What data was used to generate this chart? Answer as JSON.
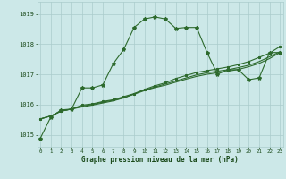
{
  "background_color": "#cce8e8",
  "grid_color": "#aacccc",
  "line_color": "#2d6a2d",
  "text_color": "#1a4a1a",
  "ylabel_values": [
    1015,
    1016,
    1017,
    1018,
    1019
  ],
  "xlabel_values": [
    0,
    1,
    2,
    3,
    4,
    5,
    6,
    7,
    8,
    9,
    10,
    11,
    12,
    13,
    14,
    15,
    16,
    17,
    18,
    19,
    20,
    21,
    22,
    23
  ],
  "xlabel": "Graphe pression niveau de la mer (hPa)",
  "series1": {
    "x": [
      0,
      1,
      2,
      3,
      4,
      5,
      6,
      7,
      8,
      9,
      10,
      11,
      12,
      13,
      14,
      15,
      16,
      17,
      18,
      19,
      20,
      21,
      22,
      23
    ],
    "y": [
      1014.88,
      1015.58,
      1015.82,
      1015.85,
      1016.55,
      1016.55,
      1016.65,
      1017.35,
      1017.82,
      1018.55,
      1018.83,
      1018.9,
      1018.83,
      1018.52,
      1018.55,
      1018.55,
      1017.72,
      1017.0,
      1017.15,
      1017.15,
      1016.82,
      1016.88,
      1017.72,
      1017.72
    ]
  },
  "series2": {
    "x": [
      0,
      1,
      2,
      3,
      4,
      5,
      6,
      7,
      8,
      9,
      10,
      11,
      12,
      13,
      14,
      15,
      16,
      17,
      18,
      19,
      20,
      21,
      22,
      23
    ],
    "y": [
      1015.52,
      1015.62,
      1015.78,
      1015.85,
      1015.92,
      1015.98,
      1016.05,
      1016.12,
      1016.22,
      1016.35,
      1016.48,
      1016.58,
      1016.68,
      1016.78,
      1016.88,
      1016.98,
      1017.05,
      1017.1,
      1017.15,
      1017.22,
      1017.3,
      1017.42,
      1017.58,
      1017.75
    ]
  },
  "series3": {
    "x": [
      0,
      1,
      2,
      3,
      4,
      5,
      6,
      7,
      8,
      9,
      10,
      11,
      12,
      13,
      14,
      15,
      16,
      17,
      18,
      19,
      20,
      21,
      22,
      23
    ],
    "y": [
      1015.52,
      1015.62,
      1015.78,
      1015.85,
      1015.95,
      1016.0,
      1016.08,
      1016.14,
      1016.22,
      1016.34,
      1016.46,
      1016.56,
      1016.64,
      1016.74,
      1016.84,
      1016.93,
      1017.0,
      1017.05,
      1017.1,
      1017.16,
      1017.25,
      1017.36,
      1017.52,
      1017.72
    ]
  },
  "series4": {
    "x": [
      0,
      1,
      2,
      3,
      4,
      5,
      6,
      7,
      8,
      9,
      10,
      11,
      12,
      13,
      14,
      15,
      16,
      17,
      18,
      19,
      20,
      21,
      22,
      23
    ],
    "y": [
      1015.52,
      1015.62,
      1015.78,
      1015.85,
      1015.98,
      1016.02,
      1016.1,
      1016.16,
      1016.26,
      1016.36,
      1016.5,
      1016.62,
      1016.72,
      1016.86,
      1016.96,
      1017.06,
      1017.12,
      1017.18,
      1017.24,
      1017.32,
      1017.42,
      1017.56,
      1017.7,
      1017.92
    ]
  },
  "ylim": [
    1014.6,
    1019.4
  ],
  "xlim": [
    -0.3,
    23.3
  ]
}
